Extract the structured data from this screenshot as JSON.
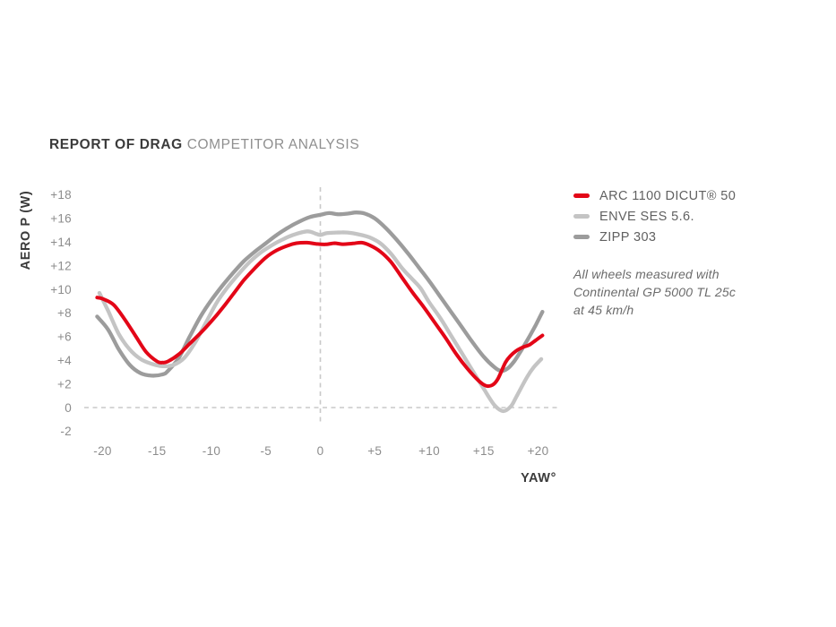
{
  "title": {
    "strong": "REPORT OF DRAG",
    "light": "COMPETITOR ANALYSIS"
  },
  "annotation": {
    "lines": [
      "All wheels measured with",
      "Continental GP 5000 TL 25c",
      "at 45 km/h"
    ]
  },
  "colors": {
    "title_strong": "#3b3b3b",
    "title_light": "#8f8f8f",
    "tick_text": "#8c8c8c",
    "axis_label": "#3b3b3b",
    "legend_text": "#616161",
    "note_text": "#6b6b6b",
    "grid_dash": "#c9c9c9",
    "arc_red": "#e30617",
    "enve_gray": "#c4c4c4",
    "zipp_gray": "#9c9c9c"
  },
  "chart_data": {
    "type": "line",
    "title": "REPORT OF DRAG COMPETITOR ANALYSIS",
    "xlabel": "YAW°",
    "ylabel": "AERO P (W)",
    "xlim": [
      -21.5,
      21.8
    ],
    "ylim": [
      -3.2,
      18.8
    ],
    "grid": "dashed zero axes only",
    "legend_position": "right",
    "x_ticks": {
      "values": [
        -20,
        -15,
        -10,
        -5,
        0,
        5,
        10,
        15,
        20
      ],
      "labels": [
        "-20",
        "-15",
        "-10",
        "-5",
        "0",
        "+5",
        "+10",
        "+15",
        "+20"
      ]
    },
    "y_ticks": {
      "values": [
        18,
        16,
        14,
        12,
        10,
        8,
        6,
        4,
        2,
        0,
        -2
      ],
      "labels": [
        "+18",
        "+16",
        "+14",
        "+12",
        "+10",
        "+8",
        "+6",
        "+4",
        "+2",
        "0",
        "-2"
      ]
    },
    "series": [
      {
        "name": "ARC 1100 DICUT® 50",
        "color": "#e30617",
        "stroke_width": 4,
        "points": [
          [
            -20.5,
            9.3
          ],
          [
            -20,
            9.2
          ],
          [
            -19,
            8.7
          ],
          [
            -18,
            7.5
          ],
          [
            -17,
            6.1
          ],
          [
            -16,
            4.7
          ],
          [
            -15,
            3.9
          ],
          [
            -14.5,
            3.8
          ],
          [
            -14,
            3.9
          ],
          [
            -13,
            4.5
          ],
          [
            -12,
            5.4
          ],
          [
            -11,
            6.3
          ],
          [
            -10,
            7.3
          ],
          [
            -9,
            8.4
          ],
          [
            -8,
            9.6
          ],
          [
            -7,
            10.8
          ],
          [
            -6,
            11.8
          ],
          [
            -5,
            12.7
          ],
          [
            -4,
            13.3
          ],
          [
            -3,
            13.7
          ],
          [
            -2.2,
            13.9
          ],
          [
            -1.2,
            13.95
          ],
          [
            -0.4,
            13.85
          ],
          [
            0.5,
            13.8
          ],
          [
            1.3,
            13.9
          ],
          [
            2,
            13.82
          ],
          [
            3,
            13.88
          ],
          [
            3.8,
            13.95
          ],
          [
            4.6,
            13.7
          ],
          [
            5.5,
            13.2
          ],
          [
            6.5,
            12.3
          ],
          [
            7.5,
            11.0
          ],
          [
            8.5,
            9.7
          ],
          [
            9.5,
            8.5
          ],
          [
            10.5,
            7.2
          ],
          [
            11.5,
            5.9
          ],
          [
            12.5,
            4.5
          ],
          [
            13.5,
            3.3
          ],
          [
            14.5,
            2.3
          ],
          [
            15.2,
            1.85
          ],
          [
            15.8,
            1.9
          ],
          [
            16.3,
            2.4
          ],
          [
            17,
            3.8
          ],
          [
            17.5,
            4.4
          ],
          [
            18,
            4.8
          ],
          [
            18.6,
            5.1
          ],
          [
            19.2,
            5.3
          ],
          [
            19.8,
            5.7
          ],
          [
            20.4,
            6.1
          ]
        ]
      },
      {
        "name": "ENVE SES 5.6.",
        "color": "#c4c4c4",
        "stroke_width": 4.3,
        "points": [
          [
            -20.3,
            9.7
          ],
          [
            -19.5,
            8.2
          ],
          [
            -18.5,
            6.2
          ],
          [
            -17.5,
            4.9
          ],
          [
            -16.5,
            4.1
          ],
          [
            -15.5,
            3.7
          ],
          [
            -14.5,
            3.5
          ],
          [
            -13.5,
            3.6
          ],
          [
            -12.5,
            4.2
          ],
          [
            -11.5,
            5.5
          ],
          [
            -10.5,
            7.2
          ],
          [
            -9.5,
            8.9
          ],
          [
            -8.5,
            10.2
          ],
          [
            -7.5,
            11.3
          ],
          [
            -6.5,
            12.3
          ],
          [
            -5.5,
            13.1
          ],
          [
            -4.5,
            13.7
          ],
          [
            -3.5,
            14.2
          ],
          [
            -2.5,
            14.6
          ],
          [
            -1.2,
            14.9
          ],
          [
            -0.4,
            14.7
          ],
          [
            0,
            14.6
          ],
          [
            0.6,
            14.75
          ],
          [
            1.5,
            14.8
          ],
          [
            2.5,
            14.8
          ],
          [
            3.5,
            14.65
          ],
          [
            4.5,
            14.4
          ],
          [
            5.5,
            13.9
          ],
          [
            6.5,
            13.0
          ],
          [
            7.5,
            11.8
          ],
          [
            8.4,
            10.9
          ],
          [
            9.2,
            10.1
          ],
          [
            10,
            8.9
          ],
          [
            11,
            7.6
          ],
          [
            12,
            6.1
          ],
          [
            13,
            4.6
          ],
          [
            14,
            3.1
          ],
          [
            15,
            1.6
          ],
          [
            16,
            0.2
          ],
          [
            16.8,
            -0.3
          ],
          [
            17.5,
            0.1
          ],
          [
            18,
            0.9
          ],
          [
            19,
            2.6
          ],
          [
            19.6,
            3.4
          ],
          [
            20.3,
            4.1
          ]
        ]
      },
      {
        "name": "ZIPP 303",
        "color": "#9c9c9c",
        "stroke_width": 4.3,
        "points": [
          [
            -20.5,
            7.7
          ],
          [
            -19.5,
            6.6
          ],
          [
            -18.5,
            4.9
          ],
          [
            -17.5,
            3.6
          ],
          [
            -16.5,
            2.9
          ],
          [
            -15.5,
            2.7
          ],
          [
            -14.5,
            2.8
          ],
          [
            -14,
            3.1
          ],
          [
            -13,
            4.2
          ],
          [
            -12,
            6.0
          ],
          [
            -11,
            7.7
          ],
          [
            -10,
            9.1
          ],
          [
            -9,
            10.3
          ],
          [
            -8,
            11.4
          ],
          [
            -7,
            12.4
          ],
          [
            -6,
            13.2
          ],
          [
            -5,
            13.9
          ],
          [
            -4,
            14.6
          ],
          [
            -3,
            15.2
          ],
          [
            -2,
            15.7
          ],
          [
            -1,
            16.1
          ],
          [
            0,
            16.3
          ],
          [
            0.8,
            16.45
          ],
          [
            1.6,
            16.35
          ],
          [
            2.5,
            16.4
          ],
          [
            3.3,
            16.5
          ],
          [
            4.1,
            16.4
          ],
          [
            5,
            16.0
          ],
          [
            6,
            15.2
          ],
          [
            7,
            14.2
          ],
          [
            8,
            13.1
          ],
          [
            9,
            11.9
          ],
          [
            10,
            10.7
          ],
          [
            11,
            9.4
          ],
          [
            12,
            8.1
          ],
          [
            13,
            6.8
          ],
          [
            14,
            5.5
          ],
          [
            15,
            4.3
          ],
          [
            16,
            3.4
          ],
          [
            16.6,
            3.1
          ],
          [
            17.2,
            3.3
          ],
          [
            17.8,
            3.9
          ],
          [
            18.5,
            4.9
          ],
          [
            19.2,
            6.0
          ],
          [
            19.8,
            7.0
          ],
          [
            20.4,
            8.1
          ]
        ]
      }
    ]
  }
}
